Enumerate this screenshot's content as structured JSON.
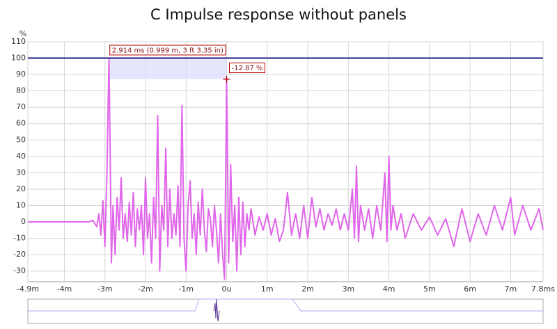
{
  "chart_data": {
    "type": "line",
    "title": "C Impulse response without panels",
    "y_unit": "%",
    "x": [
      -4.9,
      -3.4,
      -3.3,
      -3.2,
      -3.15,
      -3.1,
      -3.05,
      -3.0,
      -2.95,
      -2.9,
      -2.87,
      -2.84,
      -2.8,
      -2.75,
      -2.7,
      -2.65,
      -2.6,
      -2.55,
      -2.5,
      -2.45,
      -2.4,
      -2.35,
      -2.3,
      -2.25,
      -2.2,
      -2.15,
      -2.1,
      -2.05,
      -2.0,
      -1.95,
      -1.9,
      -1.85,
      -1.8,
      -1.75,
      -1.7,
      -1.65,
      -1.6,
      -1.55,
      -1.5,
      -1.45,
      -1.4,
      -1.35,
      -1.3,
      -1.25,
      -1.2,
      -1.15,
      -1.1,
      -1.05,
      -1.0,
      -0.95,
      -0.9,
      -0.85,
      -0.8,
      -0.75,
      -0.7,
      -0.65,
      -0.6,
      -0.55,
      -0.5,
      -0.45,
      -0.4,
      -0.35,
      -0.3,
      -0.25,
      -0.2,
      -0.15,
      -0.1,
      -0.05,
      0,
      0.05,
      0.1,
      0.15,
      0.2,
      0.25,
      0.3,
      0.35,
      0.4,
      0.45,
      0.5,
      0.55,
      0.6,
      0.7,
      0.8,
      0.9,
      1.0,
      1.1,
      1.2,
      1.3,
      1.4,
      1.5,
      1.6,
      1.7,
      1.8,
      1.9,
      2.0,
      2.1,
      2.2,
      2.3,
      2.4,
      2.5,
      2.6,
      2.7,
      2.8,
      2.9,
      3.0,
      3.1,
      3.15,
      3.2,
      3.25,
      3.3,
      3.4,
      3.5,
      3.6,
      3.7,
      3.8,
      3.9,
      3.95,
      4.0,
      4.05,
      4.1,
      4.2,
      4.3,
      4.4,
      4.6,
      4.8,
      5.0,
      5.2,
      5.4,
      5.6,
      5.8,
      6.0,
      6.2,
      6.4,
      6.6,
      6.8,
      7.0,
      7.1,
      7.3,
      7.5,
      7.7,
      7.8
    ],
    "series": [
      {
        "name": "Impulse response",
        "color": "#e066ea",
        "values": [
          0,
          0,
          1,
          -3,
          5,
          -8,
          13,
          -15,
          30,
          100,
          40,
          -25,
          10,
          -20,
          15,
          -5,
          27,
          -10,
          5,
          -12,
          12,
          -8,
          18,
          -15,
          8,
          -5,
          10,
          -20,
          27,
          -10,
          5,
          -25,
          15,
          -10,
          65,
          -30,
          10,
          -5,
          45,
          -15,
          20,
          -10,
          5,
          -8,
          22,
          -15,
          71,
          -10,
          -30,
          10,
          25,
          -10,
          5,
          -20,
          12,
          -8,
          20,
          -5,
          -18,
          8,
          2,
          -15,
          10,
          -5,
          -25,
          5,
          -20,
          -35,
          88,
          -25,
          35,
          -12,
          10,
          -30,
          15,
          -20,
          12,
          -15,
          5,
          -5,
          8,
          -8,
          3,
          -5,
          5,
          -8,
          2,
          -12,
          -5,
          18,
          -8,
          5,
          -10,
          10,
          -10,
          15,
          -3,
          8,
          -5,
          5,
          -2,
          8,
          -5,
          5,
          -5,
          20,
          -10,
          34,
          -12,
          10,
          -5,
          8,
          -10,
          10,
          -5,
          30,
          -12,
          40,
          -5,
          10,
          -5,
          5,
          -10,
          5,
          -5,
          3,
          -8,
          2,
          -15,
          8,
          -12,
          5,
          -8,
          10,
          -5,
          15,
          -8,
          10,
          -5,
          8,
          -5
        ]
      }
    ],
    "xlim": [
      -4.9,
      7.8
    ],
    "ylim": [
      -36.5,
      110
    ],
    "xticks": [
      {
        "value": -4.9,
        "label": "-4.9m"
      },
      {
        "value": -4,
        "label": "-4m"
      },
      {
        "value": -3,
        "label": "-3m"
      },
      {
        "value": -2,
        "label": "-2m"
      },
      {
        "value": -1,
        "label": "-1m"
      },
      {
        "value": 0,
        "label": "0u"
      },
      {
        "value": 1,
        "label": "1m"
      },
      {
        "value": 2,
        "label": "2m"
      },
      {
        "value": 3,
        "label": "3m"
      },
      {
        "value": 4,
        "label": "4m"
      },
      {
        "value": 5,
        "label": "5m"
      },
      {
        "value": 6,
        "label": "6m"
      },
      {
        "value": 7,
        "label": "7m"
      },
      {
        "value": 7.8,
        "label": "7.8ms"
      }
    ],
    "yticks": [
      110,
      100,
      90,
      80,
      70,
      60,
      50,
      40,
      30,
      20,
      10,
      0,
      -10,
      -20,
      -30
    ],
    "grid": true,
    "reference_line": {
      "y": 100,
      "color": "#1a1a80"
    },
    "cursor": {
      "x1": -2.914,
      "y1": 100,
      "x2": 0,
      "y2": 87.13
    },
    "annotations": [
      "2.914 ms (0.999 m, 3 ft 3.35 in)",
      "-12.87 %"
    ]
  }
}
